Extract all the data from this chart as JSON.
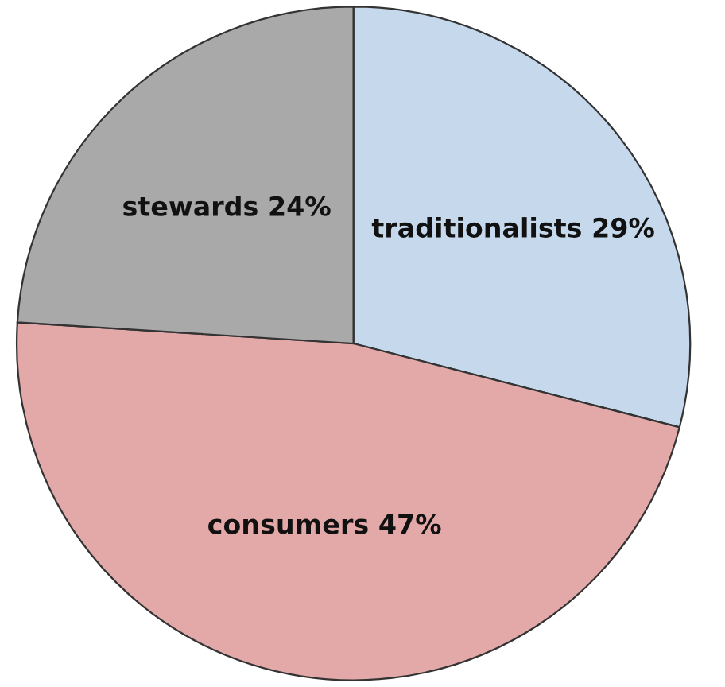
{
  "chart_data": {
    "type": "pie",
    "categories": [
      "traditionalists",
      "consumers",
      "stewards"
    ],
    "values": [
      29,
      47,
      24
    ],
    "value_labels": [
      "29%",
      "47%",
      "24%"
    ],
    "colors": [
      "#c5d8ec",
      "#e3a9a8",
      "#a9a9a9"
    ]
  }
}
